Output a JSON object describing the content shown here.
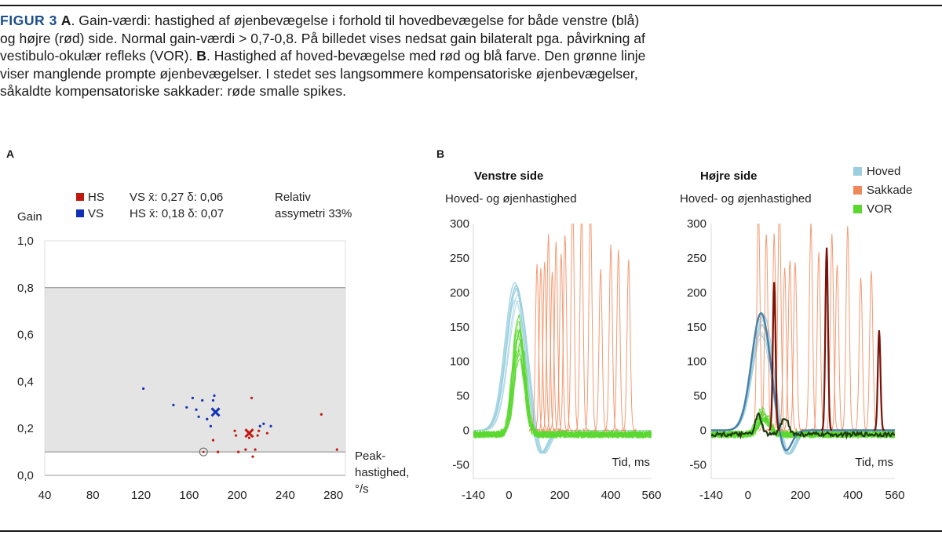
{
  "caption": {
    "fig_label": "FIGUR 3",
    "a_label": "A",
    "a_text": ". Gain-værdi: hastighed af øjenbevægelse i forhold til hovedbevægelse for både venstre (blå) og højre (rød) side. Normal gain-værdi > 0,7-0,8. På billedet vises nedsat gain bilateralt pga. påvirkning af vestibulo-okulær refleks (VOR). ",
    "b_label": "B",
    "b_text": ". Hastighed af hoved-bevægelse med rød og blå farve. Den grønne linje viser manglende prompte øjenbevægelser. I stedet ses langsommere kompensatoriske øjenbevægelser, såkaldte kompensatoriske sakkader: røde smalle spikes."
  },
  "panel_a_label": "A",
  "panel_b_label": "B",
  "colors": {
    "hs": "#c0180f",
    "vs": "#1030b8",
    "hoved": "#9bcfe0",
    "sakkade": "#f0885a",
    "vor": "#5ad830",
    "band": "#e4e4e4",
    "caption_blue": "#1d4f8a"
  },
  "chart_data": [
    {
      "type": "scatter",
      "ylabel": "Gain",
      "xlabel_lines": [
        "Peak-",
        "hastighed,",
        "°/s"
      ],
      "xticks": [
        "40",
        "80",
        "120",
        "160",
        "200",
        "240",
        "280"
      ],
      "yticks": [
        "0,0",
        "0,2",
        "0,4",
        "0,6",
        "0,8",
        "1,0"
      ],
      "xlim": [
        40,
        290
      ],
      "ylim": [
        0,
        1.0
      ],
      "band": [
        0.1,
        0.8
      ],
      "legend": [
        {
          "key": "HS",
          "label": "HS",
          "stats": "VS x̄: 0,27  δ: 0,06",
          "color": "#c0180f"
        },
        {
          "key": "VS",
          "label": "VS",
          "stats": "HS x̄: 0,18  δ: 0,07",
          "color": "#1030b8"
        }
      ],
      "assymetri": [
        "Relativ",
        "assymetri 33%"
      ],
      "series": [
        {
          "name": "VS",
          "color": "#1030b8",
          "points": [
            [
              122,
              0.37
            ],
            [
              147,
              0.3
            ],
            [
              158,
              0.29
            ],
            [
              163,
              0.33
            ],
            [
              166,
              0.28
            ],
            [
              168,
              0.25
            ],
            [
              171,
              0.32
            ],
            [
              175,
              0.24
            ],
            [
              178,
              0.21
            ],
            [
              180,
              0.32
            ],
            [
              181,
              0.34
            ],
            [
              219,
              0.21
            ],
            [
              222,
              0.22
            ],
            [
              228,
              0.21
            ]
          ],
          "mean": [
            182,
            0.27
          ]
        },
        {
          "name": "HS",
          "color": "#c0180f",
          "points": [
            [
              212,
              0.33
            ],
            [
              210,
              0.16
            ],
            [
              213,
              0.08
            ],
            [
              215,
              0.11
            ],
            [
              217,
              0.17
            ],
            [
              218,
              0.19
            ],
            [
              198,
              0.19
            ],
            [
              199,
              0.17
            ],
            [
              180,
              0.15
            ],
            [
              184,
              0.1
            ],
            [
              201,
              0.1
            ],
            [
              225,
              0.18
            ],
            [
              207,
              0.11
            ],
            [
              270,
              0.26
            ],
            [
              283,
              0.11
            ]
          ],
          "mean": [
            210,
            0.18
          ],
          "outlier": [
            172,
            0.1
          ]
        }
      ]
    },
    {
      "type": "line",
      "title": "Venstre side",
      "ylabel": "Hoved- og øjenhastighed",
      "xlabel": "Tid, ms",
      "xticks": [
        "-140",
        "0",
        "200",
        "400",
        "560"
      ],
      "yticks": [
        "300",
        "250",
        "200",
        "150",
        "100",
        "50",
        "0",
        "-50"
      ],
      "xlim": [
        -140,
        560
      ],
      "ylim": [
        -70,
        300
      ],
      "series": [
        {
          "name": "Hoved",
          "color": "#9bcfe0",
          "peak": 230,
          "peak_t": 30
        },
        {
          "name": "VOR",
          "color": "#5ad830",
          "peak": 150,
          "peak_t": 40
        },
        {
          "name": "Sakkade",
          "color": "#f0885a",
          "spike_times": [
            110,
            125,
            140,
            155,
            170,
            185,
            205,
            220,
            250,
            285,
            320,
            360,
            400,
            430,
            470
          ]
        }
      ]
    },
    {
      "type": "line",
      "title": "Højre side",
      "ylabel": "Hoved- og øjenhastighed",
      "xlabel": "Tid, ms",
      "xticks": [
        "-140",
        "0",
        "200",
        "400",
        "560"
      ],
      "yticks": [
        "300",
        "250",
        "200",
        "150",
        "100",
        "50",
        "0",
        "-50"
      ],
      "xlim": [
        -140,
        560
      ],
      "ylim": [
        -70,
        300
      ],
      "legend": [
        "Hoved",
        "Sakkade",
        "VOR"
      ],
      "series": [
        {
          "name": "Hoved",
          "color": "#9bcfe0",
          "peak": 170,
          "peak_t": 50
        },
        {
          "name": "VOR",
          "color": "#5ad830",
          "peak": 30,
          "peak_t": 60
        },
        {
          "name": "Sakkade",
          "color": "#f0885a",
          "spike_times": [
            40,
            70,
            100,
            120,
            140,
            160,
            180,
            240,
            270,
            300,
            320,
            340,
            380,
            430,
            470
          ]
        }
      ]
    }
  ]
}
